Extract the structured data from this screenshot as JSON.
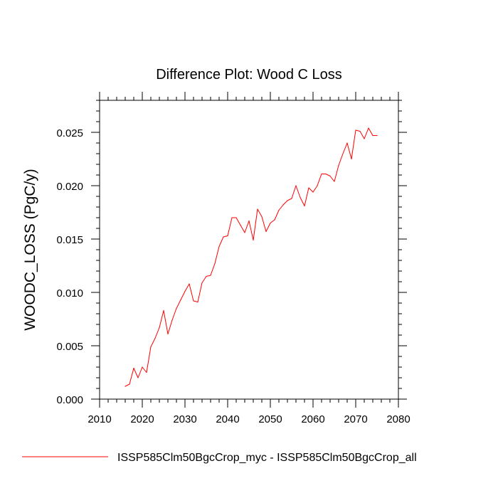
{
  "chart_data": {
    "type": "line",
    "title": "Difference Plot: Wood C Loss",
    "xlabel": "",
    "ylabel": "WOODC_LOSS  (PgC/y)",
    "xlim": [
      2010,
      2080
    ],
    "ylim": [
      0.0,
      0.028
    ],
    "x_ticks": [
      "2010",
      "2020",
      "2030",
      "2040",
      "2050",
      "2060",
      "2070",
      "2080"
    ],
    "y_ticks": [
      "0.000",
      "0.005",
      "0.010",
      "0.015",
      "0.020",
      "0.025"
    ],
    "grid": false,
    "legend_position": "bottom",
    "colors": {
      "series_line": "#ff0000",
      "axes": "#000000"
    },
    "series": [
      {
        "name": "ISSP585Clm50BgcCrop_myc - ISSP585Clm50BgcCrop_all",
        "x": [
          2016,
          2017,
          2018,
          2019,
          2020,
          2021,
          2022,
          2023,
          2024,
          2025,
          2026,
          2027,
          2028,
          2029,
          2030,
          2031,
          2032,
          2033,
          2034,
          2035,
          2036,
          2037,
          2038,
          2039,
          2040,
          2041,
          2042,
          2043,
          2044,
          2045,
          2046,
          2047,
          2048,
          2049,
          2050,
          2051,
          2052,
          2053,
          2054,
          2055,
          2056,
          2057,
          2058,
          2059,
          2060,
          2061,
          2062,
          2063,
          2064,
          2065,
          2066,
          2067,
          2068,
          2069,
          2070,
          2071,
          2072,
          2073,
          2074,
          2075
        ],
        "values": [
          0.0012,
          0.0014,
          0.0029,
          0.002,
          0.003,
          0.0025,
          0.0049,
          0.0057,
          0.0067,
          0.0083,
          0.0061,
          0.0074,
          0.0085,
          0.0093,
          0.0101,
          0.0108,
          0.0092,
          0.0091,
          0.0109,
          0.0115,
          0.0116,
          0.0127,
          0.0143,
          0.0152,
          0.0153,
          0.017,
          0.017,
          0.0163,
          0.0156,
          0.0167,
          0.0149,
          0.0178,
          0.0171,
          0.0157,
          0.0165,
          0.0168,
          0.0177,
          0.0182,
          0.0186,
          0.0188,
          0.02,
          0.0189,
          0.0181,
          0.0198,
          0.0194,
          0.02,
          0.0211,
          0.0211,
          0.0209,
          0.0204,
          0.0219,
          0.023,
          0.024,
          0.0225,
          0.0252,
          0.0251,
          0.0244,
          0.0254,
          0.0247,
          0.0247
        ]
      }
    ]
  }
}
